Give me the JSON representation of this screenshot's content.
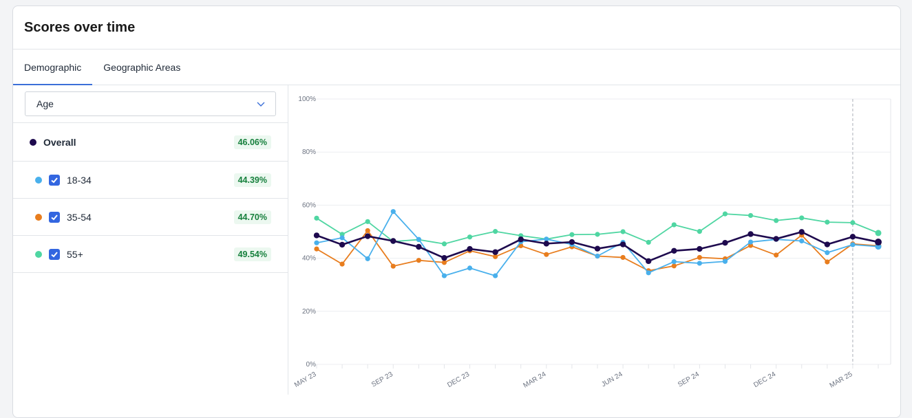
{
  "header": {
    "title": "Scores over time"
  },
  "tabs": [
    {
      "label": "Demographic",
      "active": true
    },
    {
      "label": "Geographic Areas",
      "active": false
    }
  ],
  "filter": {
    "selected": "Age"
  },
  "legend": {
    "overall": {
      "label": "Overall",
      "value": "46.06%",
      "color": "#1e0a4e"
    },
    "groups": [
      {
        "label": "18-34",
        "value": "44.39%",
        "color": "#49b0ec",
        "checked": true
      },
      {
        "label": "35-54",
        "value": "44.70%",
        "color": "#e87d1e",
        "checked": true
      },
      {
        "label": "55+",
        "value": "49.54%",
        "color": "#4fd6a2",
        "checked": true
      }
    ]
  },
  "chart_data": {
    "type": "line",
    "y_ticks": [
      "0%",
      "20%",
      "40%",
      "60%",
      "80%",
      "100%"
    ],
    "ylim": [
      0,
      100
    ],
    "x_tick_labels": [
      {
        "index": 0,
        "label": "MAY 23"
      },
      {
        "index": 3,
        "label": "SEP 23"
      },
      {
        "index": 6,
        "label": "DEC 23"
      },
      {
        "index": 9,
        "label": "MAR 24"
      },
      {
        "index": 12,
        "label": "JUN 24"
      },
      {
        "index": 15,
        "label": "SEP 24"
      },
      {
        "index": 18,
        "label": "DEC 24"
      },
      {
        "index": 21,
        "label": "MAR 25"
      }
    ],
    "points": 23,
    "marker_index": 21,
    "series": [
      {
        "name": "55+",
        "color": "#4fd6a2",
        "values": [
          55.1,
          49.0,
          53.8,
          46.3,
          47.0,
          45.4,
          48.0,
          50.1,
          48.5,
          47.2,
          48.9,
          49.0,
          50.0,
          46.0,
          52.6,
          50.1,
          56.7,
          56.1,
          54.2,
          55.2,
          53.6,
          53.4,
          49.5
        ]
      },
      {
        "name": "35-54",
        "color": "#e87d1e",
        "values": [
          43.5,
          37.8,
          50.4,
          37.0,
          39.2,
          38.4,
          42.8,
          40.6,
          44.7,
          41.4,
          44.3,
          40.8,
          40.3,
          35.3,
          37.1,
          40.3,
          39.8,
          44.8,
          41.2,
          48.7,
          38.6,
          45.4,
          44.7
        ]
      },
      {
        "name": "18-34",
        "color": "#49b0ec",
        "values": [
          45.8,
          47.7,
          39.8,
          57.6,
          47.1,
          33.4,
          36.3,
          33.4,
          46.2,
          47.2,
          45.2,
          40.8,
          46.0,
          34.5,
          38.7,
          38.1,
          38.8,
          46.1,
          47.1,
          46.5,
          42.1,
          45.1,
          44.4
        ]
      },
      {
        "name": "Overall",
        "color": "#1e0a4e",
        "values": [
          48.6,
          45.1,
          48.3,
          46.5,
          44.3,
          40.1,
          43.5,
          42.3,
          47.1,
          45.5,
          46.1,
          43.6,
          45.2,
          38.9,
          42.8,
          43.5,
          45.8,
          49.1,
          47.3,
          49.9,
          45.2,
          48.1,
          46.1
        ]
      }
    ]
  }
}
